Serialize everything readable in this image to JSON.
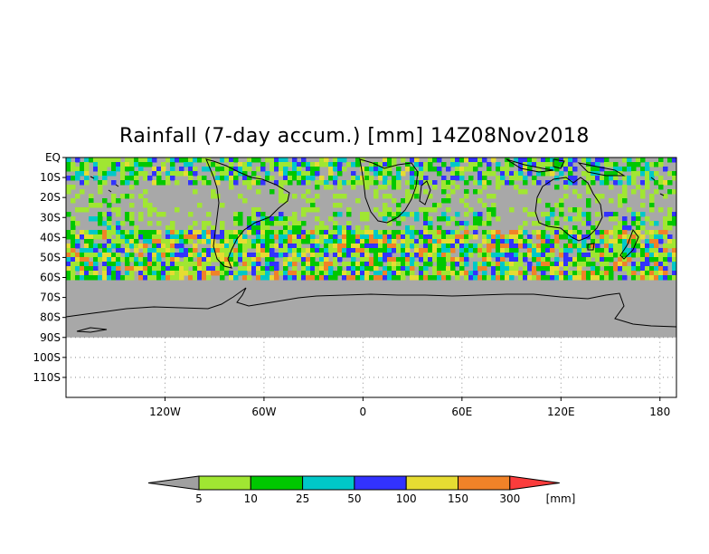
{
  "title": "Rainfall (7-day accum.) [mm] 14Z08Nov2018",
  "map": {
    "lon_range": [
      -180,
      190
    ],
    "lat_range": [
      -120,
      0
    ],
    "data_lat_bottom": -90,
    "masked_lat_bottom": -60,
    "ocean_color": "#a8a8a8",
    "y_ticks": [
      "EQ",
      "10S",
      "20S",
      "30S",
      "40S",
      "50S",
      "60S",
      "70S",
      "80S",
      "90S",
      "100S",
      "110S"
    ],
    "y_tick_values": [
      0,
      -10,
      -20,
      -30,
      -40,
      -50,
      -60,
      -70,
      -80,
      -90,
      -100,
      -110
    ],
    "x_ticks": [
      "120W",
      "60W",
      "0",
      "60E",
      "120E",
      "180"
    ],
    "x_tick_values": [
      -120,
      -60,
      0,
      60,
      120,
      180
    ],
    "grid": "dotted"
  },
  "colorbar": {
    "unit": "[mm]",
    "labels": [
      "5",
      "10",
      "25",
      "50",
      "100",
      "150",
      "300"
    ],
    "colors": [
      "#a0a0a0",
      "#a0e632",
      "#00c800",
      "#00c8c8",
      "#3232ff",
      "#e6dc32",
      "#f08228",
      "#fa3c3c"
    ]
  }
}
